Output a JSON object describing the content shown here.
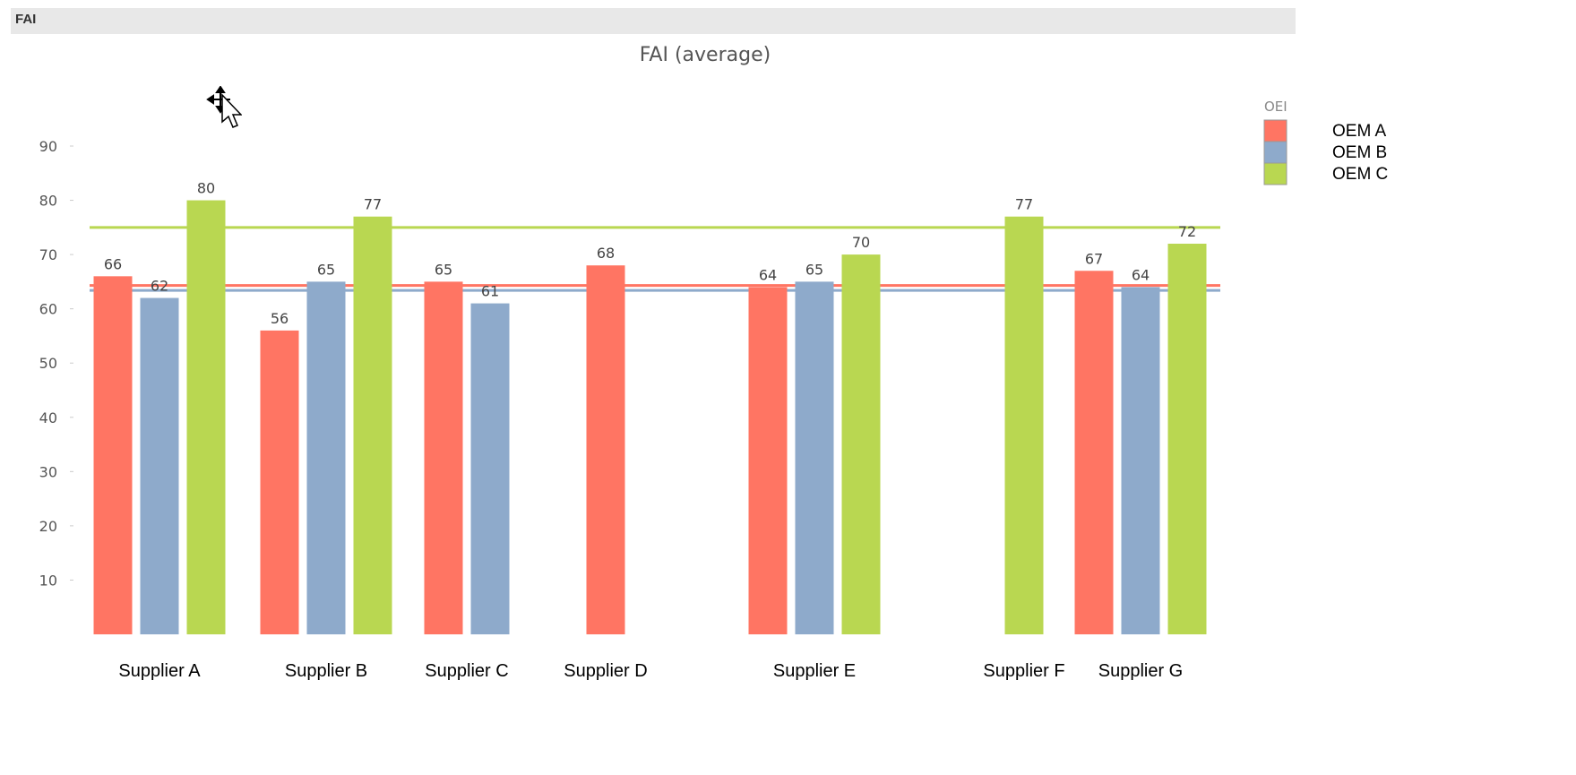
{
  "window": {
    "title": "FAI"
  },
  "legend": {
    "title": "OEI",
    "items": [
      {
        "name": "OEM A",
        "color": "#ff7563"
      },
      {
        "name": "OEM B",
        "color": "#8eaacb"
      },
      {
        "name": "OEM C",
        "color": "#b9d751"
      }
    ]
  },
  "chart_data": {
    "type": "bar",
    "title": "FAI (average)",
    "xlabel": "",
    "ylabel": "",
    "ylim": [
      0,
      90
    ],
    "yticks": [
      10,
      20,
      30,
      40,
      50,
      60,
      70,
      80,
      90
    ],
    "grid": false,
    "legend_position": "right",
    "categories": [
      "Supplier A",
      "Supplier B",
      "Supplier C",
      "Supplier D",
      "Supplier E",
      "Supplier F",
      "Supplier G"
    ],
    "series": [
      {
        "name": "OEM A",
        "color": "#ff7563",
        "values": [
          66,
          56,
          65,
          68,
          64,
          null,
          67
        ]
      },
      {
        "name": "OEM B",
        "color": "#8eaacb",
        "values": [
          62,
          65,
          61,
          null,
          65,
          null,
          64
        ]
      },
      {
        "name": "OEM C",
        "color": "#b9d751",
        "values": [
          80,
          77,
          null,
          null,
          70,
          77,
          72
        ]
      }
    ],
    "reference_lines": [
      {
        "series": "OEM C",
        "value": 75,
        "color": "#b9d751"
      },
      {
        "series": "OEM A",
        "value": 64.3,
        "color": "#ff7563"
      },
      {
        "series": "OEM B",
        "value": 63.4,
        "color": "#8eaacb"
      }
    ]
  }
}
